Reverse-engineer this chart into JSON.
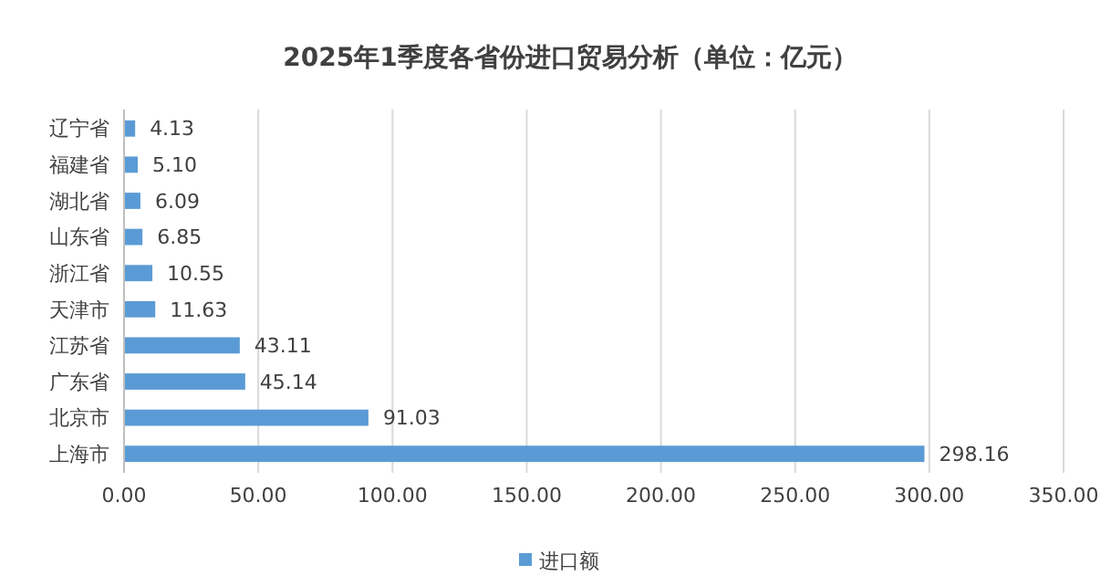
{
  "chart_data": {
    "type": "bar",
    "orientation": "horizontal",
    "title": "2025年1季度各省份进口贸易分析（单位：亿元）",
    "categories": [
      "辽宁省",
      "福建省",
      "湖北省",
      "山东省",
      "浙江省",
      "天津市",
      "江苏省",
      "广东省",
      "北京市",
      "上海市"
    ],
    "series": [
      {
        "name": "进口额",
        "color": "#5b9bd5",
        "values": [
          4.13,
          5.1,
          6.09,
          6.85,
          10.55,
          11.63,
          43.11,
          45.14,
          91.03,
          298.16
        ],
        "value_labels": [
          "4.13",
          "5.10",
          "6.09",
          "6.85",
          "10.55",
          "11.63",
          "43.11",
          "45.14",
          "91.03",
          "298.16"
        ]
      }
    ],
    "xlim": [
      0,
      350
    ],
    "xticks": [
      {
        "value": 0,
        "label": "0.00"
      },
      {
        "value": 50,
        "label": "50.00"
      },
      {
        "value": 100,
        "label": "100.00"
      },
      {
        "value": 150,
        "label": "150.00"
      },
      {
        "value": 200,
        "label": "200.00"
      },
      {
        "value": 250,
        "label": "250.00"
      },
      {
        "value": 300,
        "label": "300.00"
      },
      {
        "value": 350,
        "label": "350.00"
      }
    ],
    "grid": "x",
    "legend": "bottom"
  }
}
